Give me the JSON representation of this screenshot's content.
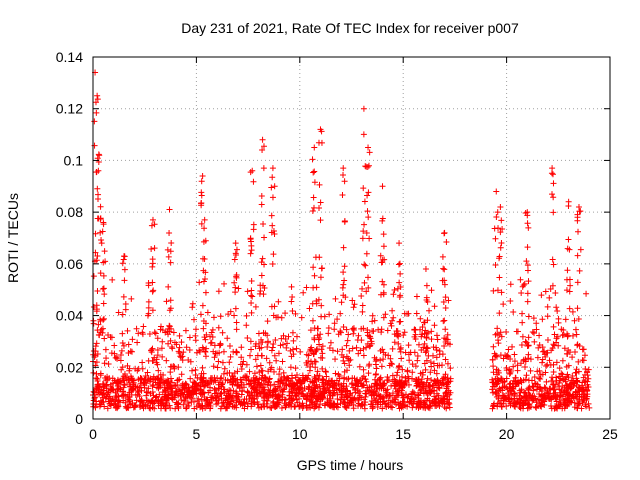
{
  "chart_data": {
    "type": "scatter",
    "title": "Day 231 of 2021, Rate Of TEC Index for receiver p007",
    "xlabel": "GPS time / hours",
    "ylabel": "ROTI / TECUs",
    "xlim": [
      0,
      25
    ],
    "ylim": [
      0,
      0.14
    ],
    "x_ticks": [
      0,
      5,
      10,
      15,
      20,
      25
    ],
    "y_ticks": [
      0,
      0.02,
      0.04,
      0.06,
      0.08,
      0.1,
      0.12,
      0.14
    ],
    "x_tick_labels": [
      "0",
      "5",
      "10",
      "15",
      "20",
      "25"
    ],
    "y_tick_labels": [
      "0",
      "0.02",
      "0.04",
      "0.06",
      "0.08",
      "0.1",
      "0.12",
      "0.14"
    ],
    "grid": true,
    "marker": "+",
    "color": "#ff0000",
    "data_gaps_hours": [
      [
        17.3,
        19.3
      ]
    ],
    "series": [
      {
        "name": "ROTI",
        "segments": [
          {
            "x_range": [
              0.0,
              17.3
            ],
            "typical_range": [
              0.004,
              0.035
            ]
          },
          {
            "x_range": [
              19.3,
              24.0
            ],
            "typical_range": [
              0.004,
              0.035
            ]
          }
        ],
        "peaks": [
          {
            "x": 0.1,
            "y": 0.134
          },
          {
            "x": 0.2,
            "y": 0.125
          },
          {
            "x": 0.3,
            "y": 0.102
          },
          {
            "x": 0.5,
            "y": 0.076
          },
          {
            "x": 1.5,
            "y": 0.063
          },
          {
            "x": 2.9,
            "y": 0.077
          },
          {
            "x": 3.7,
            "y": 0.081
          },
          {
            "x": 5.3,
            "y": 0.094
          },
          {
            "x": 5.4,
            "y": 0.077
          },
          {
            "x": 6.9,
            "y": 0.068
          },
          {
            "x": 7.7,
            "y": 0.096
          },
          {
            "x": 8.2,
            "y": 0.108
          },
          {
            "x": 8.7,
            "y": 0.097
          },
          {
            "x": 10.7,
            "y": 0.105
          },
          {
            "x": 11.0,
            "y": 0.112
          },
          {
            "x": 12.1,
            "y": 0.097
          },
          {
            "x": 13.1,
            "y": 0.12
          },
          {
            "x": 13.3,
            "y": 0.105
          },
          {
            "x": 14.0,
            "y": 0.09
          },
          {
            "x": 14.8,
            "y": 0.068
          },
          {
            "x": 16.1,
            "y": 0.058
          },
          {
            "x": 17.0,
            "y": 0.072
          },
          {
            "x": 19.5,
            "y": 0.088
          },
          {
            "x": 19.7,
            "y": 0.082
          },
          {
            "x": 21.0,
            "y": 0.08
          },
          {
            "x": 22.2,
            "y": 0.097
          },
          {
            "x": 23.0,
            "y": 0.084
          },
          {
            "x": 23.5,
            "y": 0.082
          }
        ]
      }
    ]
  }
}
